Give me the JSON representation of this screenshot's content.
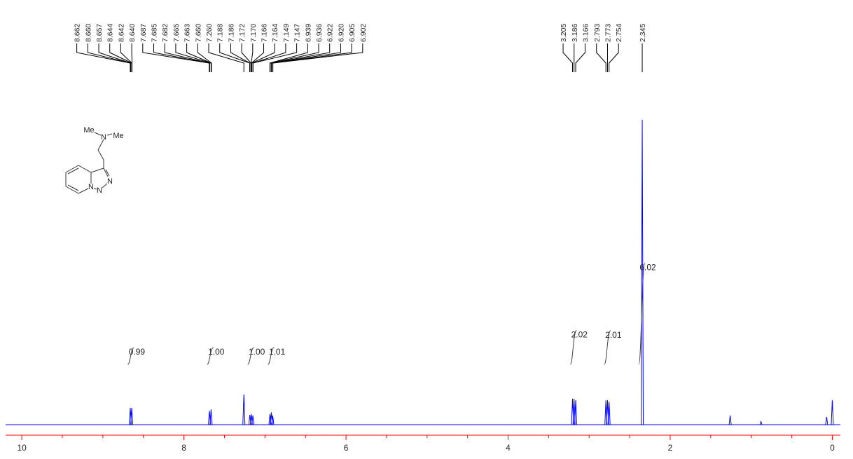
{
  "chart_data": {
    "type": "nmr",
    "x": [
      8.662,
      8.644,
      7.685,
      7.665,
      7.26,
      7.186,
      7.168,
      7.149,
      6.938,
      6.921,
      6.904,
      3.205,
      3.186,
      3.166,
      2.793,
      2.773,
      2.754,
      2.345,
      1.26,
      0.88,
      0.07,
      0.0
    ],
    "values": [
      5.5,
      5.5,
      4.5,
      5,
      9.9,
      3.2,
      3.4,
      3,
      3.5,
      4,
      3,
      8.5,
      8.5,
      8,
      8,
      8,
      7.5,
      100,
      3,
      1,
      2.5,
      8
    ],
    "color": "#0000ff",
    "peak_labels": [
      8.662,
      {
        "value": 8.66,
        "label": "8.660"
      },
      8.657,
      8.644,
      8.642,
      {
        "value": 8.64,
        "label": "8.640"
      },
      7.687,
      7.685,
      7.682,
      7.665,
      7.663,
      {
        "value": 7.66,
        "label": "7.660"
      },
      {
        "value": 7.26,
        "label": "7.260"
      },
      7.188,
      7.186,
      7.172,
      {
        "value": 7.17,
        "label": "7.170"
      },
      7.166,
      7.164,
      7.149,
      7.147,
      6.939,
      6.936,
      6.922,
      {
        "value": 6.92,
        "label": "6.920"
      },
      6.905,
      6.902,
      3.205,
      3.186,
      3.166,
      2.793,
      2.773,
      2.754,
      2.345
    ],
    "integrals": {
      "x": [
        8.65,
        7.67,
        7.17,
        6.92,
        3.19,
        2.77,
        2.345
      ],
      "values": [
        0.99,
        1,
        1,
        1.01,
        2.02,
        2.01,
        6.02
      ],
      "value_labels": [
        "0.99",
        "1.00",
        "1.00",
        "1.01",
        "2.02",
        "2.01",
        "6.02"
      ]
    },
    "xlim": [
      10.2,
      -0.1
    ],
    "xticks": [
      10,
      8,
      6,
      4,
      2,
      0
    ],
    "xminorticks": [
      9.5,
      9,
      8.5,
      7.5,
      7,
      6.5,
      5.5,
      5,
      4.5,
      3.5,
      3,
      2.5,
      1.5,
      1,
      0.5
    ],
    "axis_color": "#ff0000"
  },
  "structure": {
    "labels": [
      "Me",
      "N",
      "Me",
      "N",
      "N",
      "N"
    ]
  }
}
